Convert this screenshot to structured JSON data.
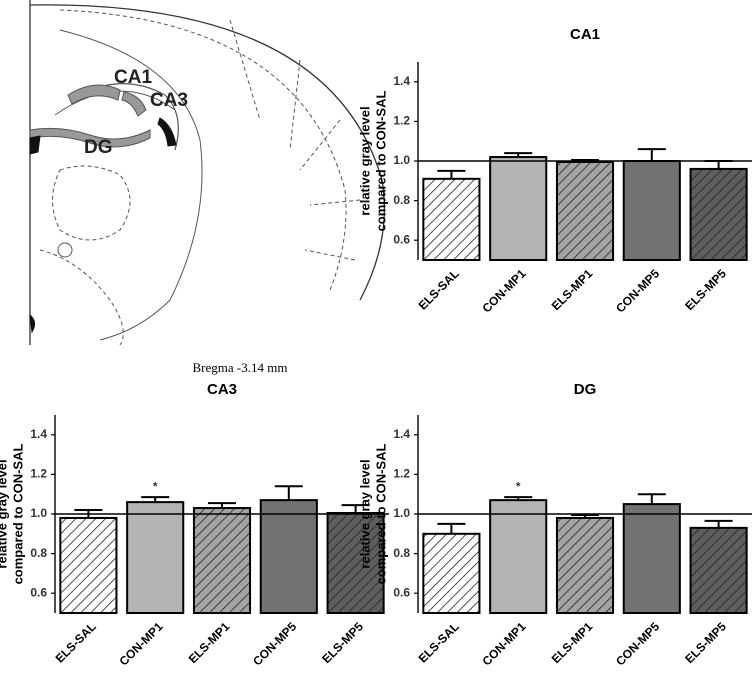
{
  "diagram": {
    "labels": [
      "CA1",
      "CA3",
      "DG"
    ],
    "caption": "Bregma -3.14 mm"
  },
  "chart_data": [
    {
      "type": "bar",
      "title": "CA1",
      "ylabel": [
        "relative gray level",
        "compared to CON-SAL"
      ],
      "categories": [
        "ELS-SAL",
        "CON-MP1",
        "ELS-MP1",
        "CON-MP5",
        "ELS-MP5"
      ],
      "values": [
        0.91,
        1.02,
        0.995,
        1.0,
        0.96
      ],
      "errors": [
        0.04,
        0.02,
        0.01,
        0.06,
        0.04
      ],
      "colors": [
        "#ffffff",
        "#b4b4b4",
        "#a4a4a4",
        "#727272",
        "#5e5e5e"
      ],
      "hatch": [
        true,
        false,
        true,
        false,
        true
      ],
      "significance": [
        null,
        null,
        null,
        null,
        null
      ],
      "reference_line": 1.0,
      "ylim": [
        0.5,
        1.5
      ],
      "yticks": [
        0.6,
        0.8,
        {
          "value": 1.0,
          "label": "1.0"
        },
        1.2,
        1.4
      ]
    },
    {
      "type": "bar",
      "title": "CA3",
      "ylabel": [
        "relative gray level",
        "compared to CON-SAL"
      ],
      "categories": [
        "ELS-SAL",
        "CON-MP1",
        "ELS-MP1",
        "CON-MP5",
        "ELS-MP5"
      ],
      "values": [
        0.98,
        1.06,
        1.03,
        1.07,
        1.005
      ],
      "errors": [
        0.04,
        0.025,
        0.025,
        0.07,
        0.04
      ],
      "colors": [
        "#ffffff",
        "#b4b4b4",
        "#a4a4a4",
        "#727272",
        "#5e5e5e"
      ],
      "hatch": [
        true,
        false,
        true,
        false,
        true
      ],
      "significance": [
        null,
        "*",
        null,
        null,
        null
      ],
      "reference_line": 1.0,
      "ylim": [
        0.5,
        1.5
      ],
      "yticks": [
        0.6,
        0.8,
        {
          "value": 1.0,
          "label": "1.0"
        },
        1.2,
        1.4
      ]
    },
    {
      "type": "bar",
      "title": "DG",
      "ylabel": [
        "relative gray level",
        "compared to CON-SAL"
      ],
      "categories": [
        "ELS-SAL",
        "CON-MP1",
        "ELS-MP1",
        "CON-MP5",
        "ELS-MP5"
      ],
      "values": [
        0.9,
        1.07,
        0.98,
        1.05,
        0.93
      ],
      "errors": [
        0.05,
        0.015,
        0.015,
        0.05,
        0.035
      ],
      "colors": [
        "#ffffff",
        "#b4b4b4",
        "#a4a4a4",
        "#727272",
        "#5e5e5e"
      ],
      "hatch": [
        true,
        false,
        true,
        false,
        true
      ],
      "significance": [
        null,
        "*",
        null,
        null,
        null
      ],
      "reference_line": 1.0,
      "ylim": [
        0.5,
        1.5
      ],
      "yticks": [
        0.6,
        0.8,
        {
          "value": 1.0,
          "label": "1.0"
        },
        1.2,
        1.4
      ]
    }
  ]
}
